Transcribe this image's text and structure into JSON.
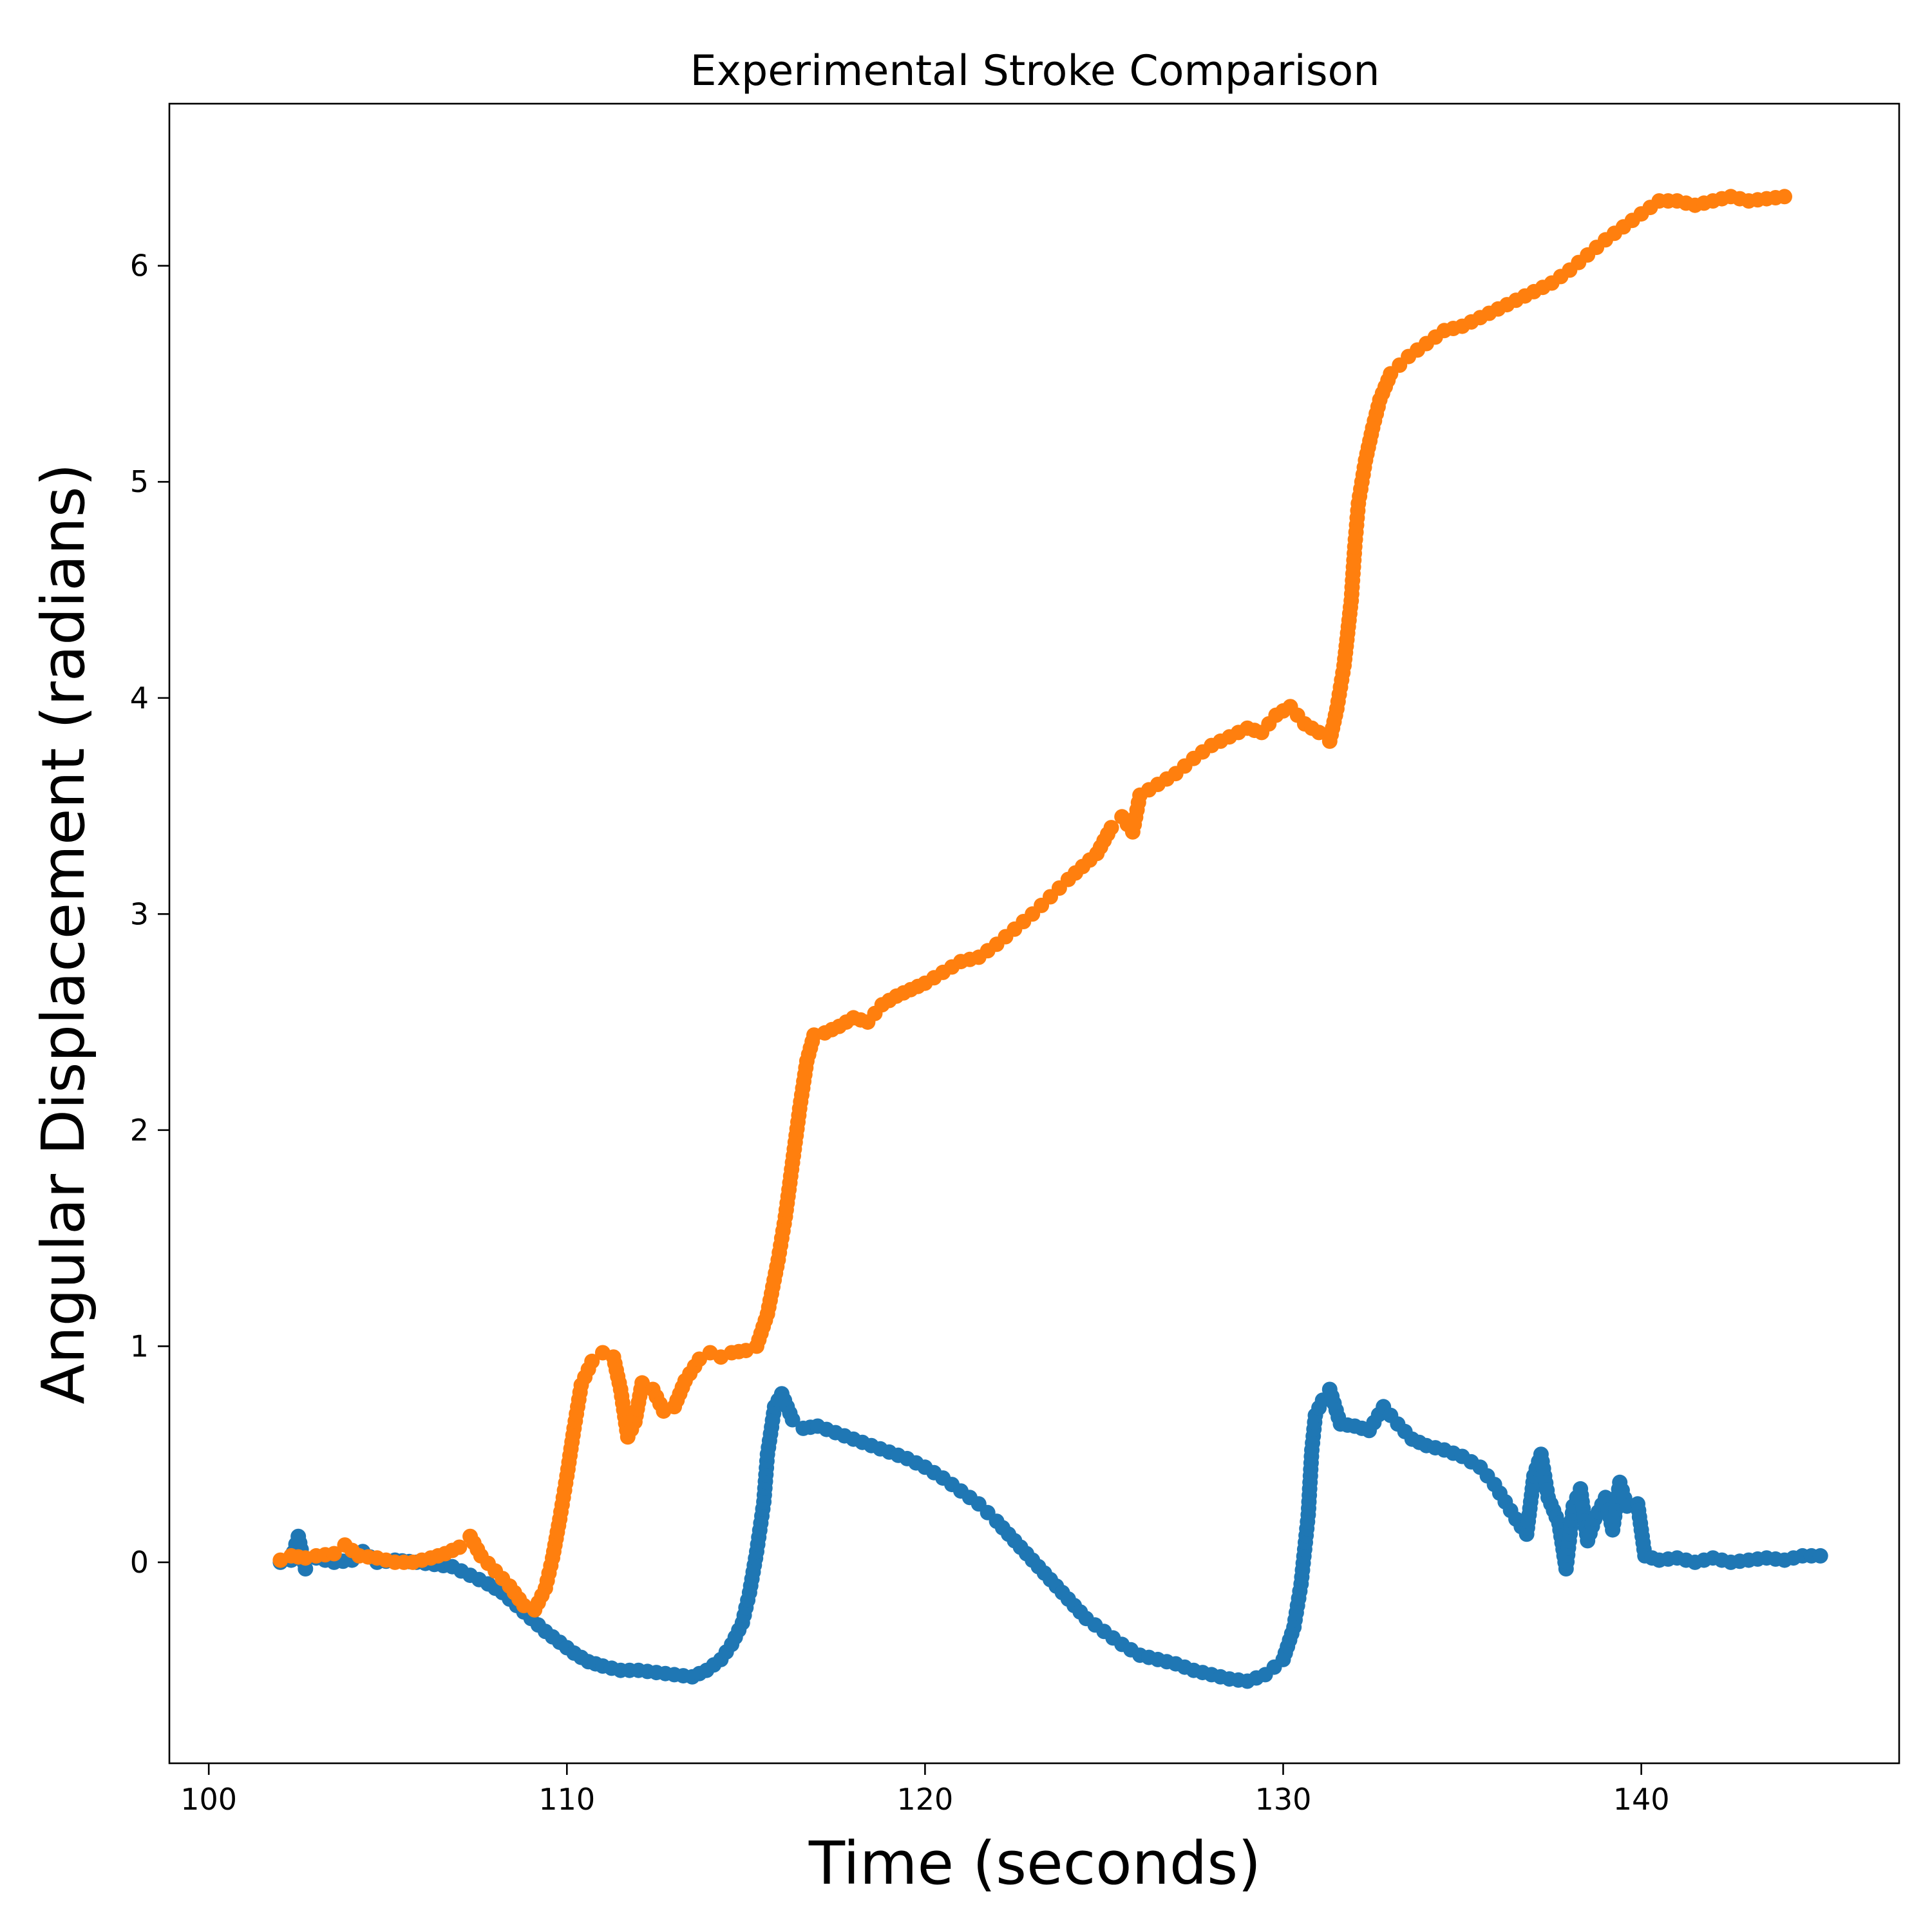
{
  "chart_data": {
    "type": "scatter",
    "title": "Experimental Stroke Comparison",
    "xlabel": "Time (seconds)",
    "ylabel": "Angular Displacement (radians)",
    "xlim": [
      98.9,
      147.2
    ],
    "ylim": [
      -0.93,
      6.75
    ],
    "xticks": [
      100,
      110,
      120,
      130,
      140
    ],
    "yticks": [
      0,
      1,
      2,
      3,
      4,
      5,
      6
    ],
    "grid": false,
    "legend": "none",
    "series": [
      {
        "color": "#1f77b4",
        "points": [
          [
            102.0,
            0.0
          ],
          [
            102.3,
            0.01
          ],
          [
            102.5,
            0.12
          ],
          [
            102.7,
            -0.03
          ],
          [
            103.0,
            0.02
          ],
          [
            103.5,
            0.0
          ],
          [
            104.0,
            0.01
          ],
          [
            104.3,
            0.05
          ],
          [
            104.7,
            0.0
          ],
          [
            105.2,
            0.01
          ],
          [
            105.8,
            0.0
          ],
          [
            106.3,
            -0.01
          ],
          [
            106.8,
            -0.02
          ],
          [
            107.3,
            -0.06
          ],
          [
            107.8,
            -0.1
          ],
          [
            108.2,
            -0.14
          ],
          [
            108.6,
            -0.2
          ],
          [
            109.0,
            -0.26
          ],
          [
            109.4,
            -0.32
          ],
          [
            109.8,
            -0.37
          ],
          [
            110.2,
            -0.42
          ],
          [
            110.6,
            -0.46
          ],
          [
            111.0,
            -0.48
          ],
          [
            111.5,
            -0.5
          ],
          [
            112.0,
            -0.5
          ],
          [
            112.5,
            -0.51
          ],
          [
            113.0,
            -0.52
          ],
          [
            113.5,
            -0.53
          ],
          [
            113.9,
            -0.5
          ],
          [
            114.3,
            -0.45
          ],
          [
            114.6,
            -0.38
          ],
          [
            114.9,
            -0.28
          ],
          [
            115.1,
            -0.14
          ],
          [
            115.3,
            0.05
          ],
          [
            115.5,
            0.28
          ],
          [
            115.6,
            0.5
          ],
          [
            115.8,
            0.72
          ],
          [
            116.0,
            0.78
          ],
          [
            116.3,
            0.66
          ],
          [
            116.6,
            0.62
          ],
          [
            117.0,
            0.63
          ],
          [
            117.5,
            0.6
          ],
          [
            118.0,
            0.57
          ],
          [
            118.5,
            0.54
          ],
          [
            119.0,
            0.51
          ],
          [
            119.5,
            0.48
          ],
          [
            120.0,
            0.44
          ],
          [
            120.5,
            0.39
          ],
          [
            121.0,
            0.33
          ],
          [
            121.5,
            0.27
          ],
          [
            122.0,
            0.19
          ],
          [
            122.5,
            0.1
          ],
          [
            123.0,
            0.01
          ],
          [
            123.5,
            -0.08
          ],
          [
            124.0,
            -0.17
          ],
          [
            124.5,
            -0.26
          ],
          [
            125.0,
            -0.32
          ],
          [
            125.5,
            -0.38
          ],
          [
            126.0,
            -0.43
          ],
          [
            126.5,
            -0.45
          ],
          [
            127.0,
            -0.47
          ],
          [
            127.5,
            -0.5
          ],
          [
            128.0,
            -0.52
          ],
          [
            128.5,
            -0.54
          ],
          [
            129.0,
            -0.55
          ],
          [
            129.5,
            -0.52
          ],
          [
            130.0,
            -0.45
          ],
          [
            130.3,
            -0.3
          ],
          [
            130.5,
            -0.1
          ],
          [
            130.7,
            0.22
          ],
          [
            130.8,
            0.52
          ],
          [
            130.9,
            0.68
          ],
          [
            131.1,
            0.75
          ],
          [
            131.3,
            0.8
          ],
          [
            131.6,
            0.64
          ],
          [
            132.0,
            0.63
          ],
          [
            132.4,
            0.61
          ],
          [
            132.8,
            0.72
          ],
          [
            133.2,
            0.64
          ],
          [
            133.6,
            0.57
          ],
          [
            134.0,
            0.54
          ],
          [
            134.5,
            0.52
          ],
          [
            135.0,
            0.49
          ],
          [
            135.5,
            0.44
          ],
          [
            135.9,
            0.36
          ],
          [
            136.2,
            0.28
          ],
          [
            136.5,
            0.2
          ],
          [
            136.8,
            0.13
          ],
          [
            137.0,
            0.4
          ],
          [
            137.2,
            0.5
          ],
          [
            137.4,
            0.3
          ],
          [
            137.7,
            0.18
          ],
          [
            137.9,
            -0.03
          ],
          [
            138.1,
            0.26
          ],
          [
            138.3,
            0.34
          ],
          [
            138.5,
            0.1
          ],
          [
            138.7,
            0.2
          ],
          [
            139.0,
            0.3
          ],
          [
            139.2,
            0.15
          ],
          [
            139.4,
            0.37
          ],
          [
            139.6,
            0.26
          ],
          [
            139.9,
            0.27
          ],
          [
            140.1,
            0.03
          ],
          [
            140.5,
            0.01
          ],
          [
            141.0,
            0.02
          ],
          [
            141.5,
            0.0
          ],
          [
            142.0,
            0.02
          ],
          [
            142.5,
            0.0
          ],
          [
            143.0,
            0.01
          ],
          [
            143.5,
            0.02
          ],
          [
            144.0,
            0.01
          ],
          [
            144.5,
            0.03
          ],
          [
            145.0,
            0.03
          ]
        ]
      },
      {
        "color": "#ff7f0e",
        "points": [
          [
            102.0,
            0.01
          ],
          [
            102.3,
            0.03
          ],
          [
            102.7,
            0.02
          ],
          [
            103.0,
            0.03
          ],
          [
            103.5,
            0.04
          ],
          [
            103.8,
            0.08
          ],
          [
            104.2,
            0.03
          ],
          [
            104.7,
            0.02
          ],
          [
            105.2,
            0.0
          ],
          [
            105.7,
            0.0
          ],
          [
            106.2,
            0.02
          ],
          [
            106.6,
            0.04
          ],
          [
            107.0,
            0.07
          ],
          [
            107.3,
            0.12
          ],
          [
            107.6,
            0.03
          ],
          [
            108.0,
            -0.04
          ],
          [
            108.4,
            -0.11
          ],
          [
            108.8,
            -0.2
          ],
          [
            109.1,
            -0.22
          ],
          [
            109.4,
            -0.12
          ],
          [
            109.6,
            0.02
          ],
          [
            109.8,
            0.2
          ],
          [
            110.0,
            0.4
          ],
          [
            110.2,
            0.62
          ],
          [
            110.4,
            0.82
          ],
          [
            110.7,
            0.93
          ],
          [
            111.0,
            0.97
          ],
          [
            111.3,
            0.95
          ],
          [
            111.5,
            0.8
          ],
          [
            111.7,
            0.58
          ],
          [
            111.9,
            0.65
          ],
          [
            112.1,
            0.83
          ],
          [
            112.4,
            0.8
          ],
          [
            112.7,
            0.7
          ],
          [
            113.0,
            0.72
          ],
          [
            113.3,
            0.84
          ],
          [
            113.7,
            0.94
          ],
          [
            114.0,
            0.97
          ],
          [
            114.3,
            0.95
          ],
          [
            114.6,
            0.97
          ],
          [
            115.0,
            0.98
          ],
          [
            115.3,
            1.0
          ],
          [
            115.6,
            1.15
          ],
          [
            115.9,
            1.4
          ],
          [
            116.1,
            1.6
          ],
          [
            116.3,
            1.85
          ],
          [
            116.5,
            2.1
          ],
          [
            116.7,
            2.32
          ],
          [
            116.9,
            2.44
          ],
          [
            117.2,
            2.45
          ],
          [
            117.6,
            2.48
          ],
          [
            118.0,
            2.52
          ],
          [
            118.4,
            2.5
          ],
          [
            118.8,
            2.58
          ],
          [
            119.2,
            2.62
          ],
          [
            119.6,
            2.65
          ],
          [
            120.0,
            2.68
          ],
          [
            120.5,
            2.73
          ],
          [
            121.0,
            2.78
          ],
          [
            121.5,
            2.8
          ],
          [
            122.0,
            2.86
          ],
          [
            122.5,
            2.93
          ],
          [
            123.0,
            3.0
          ],
          [
            123.5,
            3.08
          ],
          [
            124.0,
            3.16
          ],
          [
            124.4,
            3.22
          ],
          [
            124.8,
            3.28
          ],
          [
            125.2,
            3.4
          ],
          [
            125.5,
            3.45
          ],
          [
            125.8,
            3.38
          ],
          [
            126.0,
            3.55
          ],
          [
            126.5,
            3.6
          ],
          [
            127.0,
            3.65
          ],
          [
            127.5,
            3.72
          ],
          [
            128.0,
            3.78
          ],
          [
            128.5,
            3.82
          ],
          [
            129.0,
            3.86
          ],
          [
            129.4,
            3.84
          ],
          [
            129.8,
            3.92
          ],
          [
            130.2,
            3.96
          ],
          [
            130.6,
            3.88
          ],
          [
            131.0,
            3.84
          ],
          [
            131.3,
            3.8
          ],
          [
            131.5,
            3.95
          ],
          [
            131.7,
            4.15
          ],
          [
            131.9,
            4.45
          ],
          [
            132.0,
            4.7
          ],
          [
            132.1,
            4.9
          ],
          [
            132.3,
            5.1
          ],
          [
            132.5,
            5.25
          ],
          [
            132.7,
            5.38
          ],
          [
            133.0,
            5.5
          ],
          [
            133.5,
            5.58
          ],
          [
            134.0,
            5.64
          ],
          [
            134.5,
            5.7
          ],
          [
            135.0,
            5.72
          ],
          [
            135.5,
            5.76
          ],
          [
            136.0,
            5.8
          ],
          [
            136.5,
            5.84
          ],
          [
            137.0,
            5.88
          ],
          [
            137.5,
            5.92
          ],
          [
            138.0,
            5.98
          ],
          [
            138.5,
            6.05
          ],
          [
            139.0,
            6.12
          ],
          [
            139.5,
            6.18
          ],
          [
            140.0,
            6.24
          ],
          [
            140.5,
            6.3
          ],
          [
            141.0,
            6.3
          ],
          [
            141.5,
            6.28
          ],
          [
            142.0,
            6.3
          ],
          [
            142.5,
            6.32
          ],
          [
            143.0,
            6.3
          ],
          [
            143.5,
            6.31
          ],
          [
            144.0,
            6.32
          ]
        ]
      }
    ]
  }
}
